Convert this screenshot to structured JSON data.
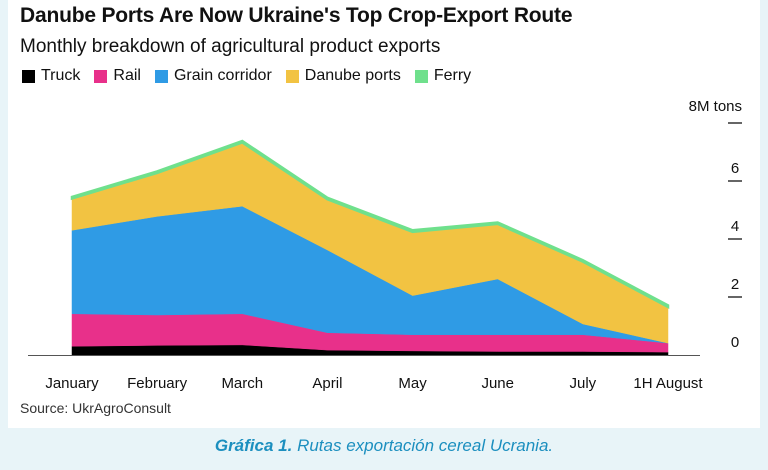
{
  "chart_data": {
    "type": "area",
    "stacked": true,
    "title": "Danube Ports Are Now Ukraine's Top Crop-Export Route",
    "subtitle": "Monthly breakdown of agricultural product exports",
    "ylabel": "8M tons",
    "categories": [
      "January",
      "February",
      "March",
      "April",
      "May",
      "June",
      "July",
      "1H August"
    ],
    "yticks": [
      0,
      2,
      4,
      6
    ],
    "ylim": [
      0,
      8
    ],
    "legend_position": "top-left",
    "series": [
      {
        "name": "Truck",
        "color": "#000000",
        "values": [
          0.3,
          0.33,
          0.35,
          0.17,
          0.14,
          0.12,
          0.12,
          0.1
        ]
      },
      {
        "name": "Rail",
        "color": "#e8308a",
        "values": [
          1.12,
          1.05,
          1.07,
          0.6,
          0.56,
          0.58,
          0.58,
          0.31
        ]
      },
      {
        "name": "Grain corridor",
        "color": "#2f9be5",
        "values": [
          2.88,
          3.4,
          3.71,
          2.85,
          1.35,
          1.92,
          0.37,
          0.0
        ]
      },
      {
        "name": "Danube ports",
        "color": "#f2c342",
        "values": [
          1.1,
          1.5,
          2.2,
          1.75,
          2.2,
          1.9,
          2.15,
          1.25
        ]
      },
      {
        "name": "Ferry",
        "color": "#6fe08c",
        "values": [
          0.05,
          0.05,
          0.05,
          0.05,
          0.05,
          0.05,
          0.05,
          0.05
        ]
      }
    ]
  },
  "source": "Source: UkrAgroConsult",
  "caption": {
    "bold": "Gráfica 1.",
    "text": " Rutas exportación cereal Ucrania."
  }
}
